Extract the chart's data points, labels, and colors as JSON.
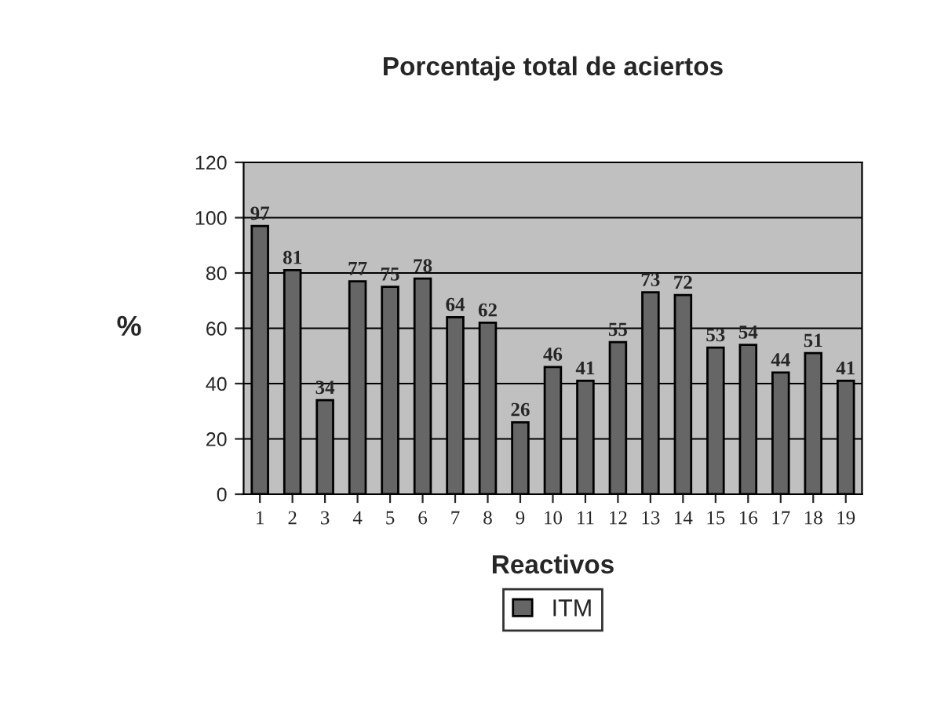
{
  "chart_data": {
    "type": "bar",
    "title": "Porcentaje total de aciertos",
    "xlabel": "Reactivos",
    "ylabel": "%",
    "categories": [
      "1",
      "2",
      "3",
      "4",
      "5",
      "6",
      "7",
      "8",
      "9",
      "10",
      "11",
      "12",
      "13",
      "14",
      "15",
      "16",
      "17",
      "18",
      "19"
    ],
    "series": [
      {
        "name": "ITM",
        "color": "#666666",
        "values": [
          97,
          81,
          34,
          77,
          75,
          78,
          64,
          62,
          26,
          46,
          41,
          55,
          73,
          72,
          53,
          54,
          44,
          51,
          41
        ]
      }
    ],
    "ylim": [
      0,
      120
    ],
    "yticks": [
      0,
      20,
      40,
      60,
      80,
      100,
      120
    ],
    "grid": "y",
    "legend": "bottom",
    "data_labels": true
  }
}
